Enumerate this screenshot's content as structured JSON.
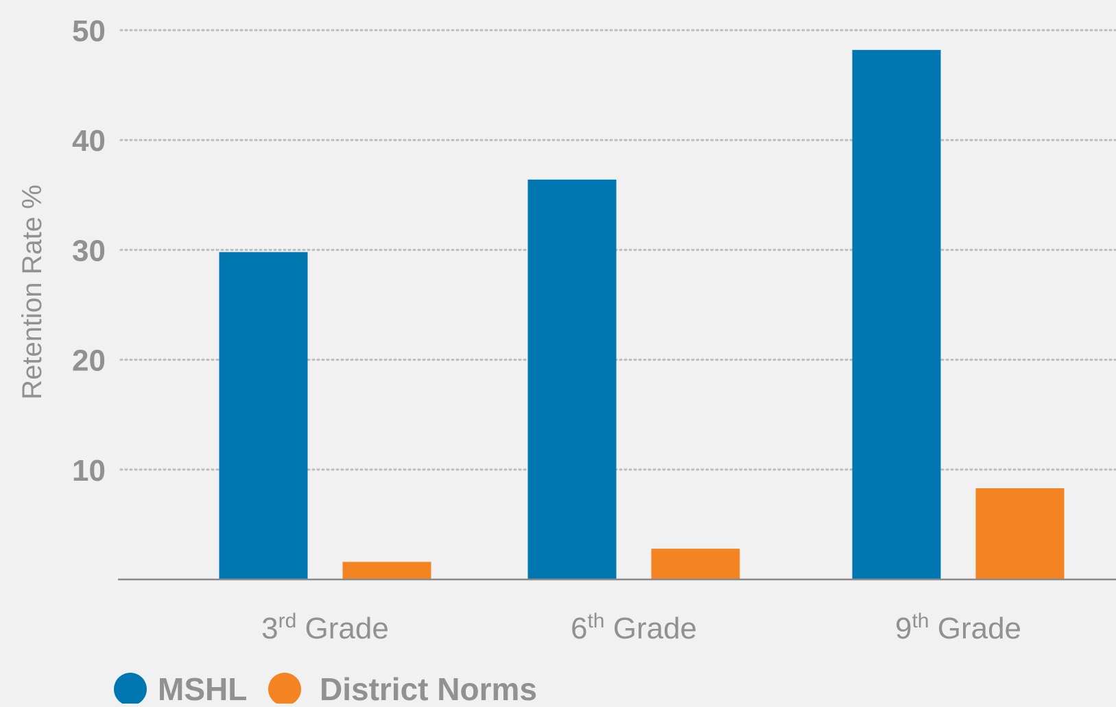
{
  "chart_data": {
    "type": "bar",
    "title": "",
    "xlabel": "",
    "ylabel": "Retention Rate %",
    "ylim": [
      0,
      50
    ],
    "yticks": [
      10,
      20,
      30,
      40,
      50
    ],
    "grid": true,
    "legend_placement": "bottom-left",
    "categories": [
      {
        "base": "3",
        "sup": "rd",
        "rest": " Grade"
      },
      {
        "base": "6",
        "sup": "th",
        "rest": " Grade"
      },
      {
        "base": "9",
        "sup": "th",
        "rest": " Grade"
      }
    ],
    "series": [
      {
        "name": "MSHL",
        "color": "#0077b0",
        "values": [
          29.8,
          36.4,
          48.2
        ]
      },
      {
        "name": "District Norms",
        "color": "#f38421",
        "values": [
          1.6,
          2.8,
          8.3
        ]
      }
    ],
    "colors": {
      "background": "#f1f1f1",
      "text": "#919191",
      "grid": "#bdbdbd",
      "axis": "#8a8a8a"
    }
  }
}
